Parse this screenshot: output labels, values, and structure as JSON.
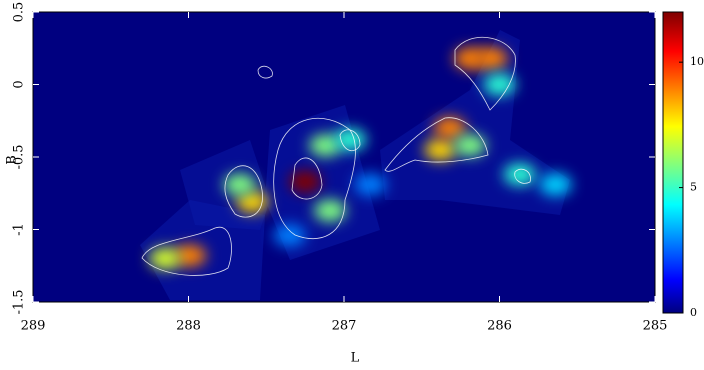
{
  "chart_data": {
    "type": "image",
    "xlabel": "L",
    "ylabel": "B",
    "xlim": [
      289,
      285
    ],
    "xticks": [
      289,
      288,
      287,
      286,
      285
    ],
    "ylim": [
      -1.5,
      0.5
    ],
    "yticks": [
      -1.5,
      -1,
      -0.5,
      0,
      0.5
    ],
    "x": [
      287.99,
      288.15,
      287.59,
      287.67,
      287.25,
      287.09,
      287.12,
      286.96,
      286.38,
      286.32,
      286.19,
      286.19,
      286.05,
      286.0,
      285.87,
      285.64,
      286.83,
      287.35
    ],
    "y": [
      -1.18,
      -1.2,
      -0.81,
      -0.69,
      -0.67,
      -0.87,
      -0.42,
      -0.38,
      -0.45,
      -0.3,
      -0.42,
      0.18,
      0.18,
      0.0,
      -0.62,
      -0.69,
      -0.69,
      -1.04
    ],
    "values": [
      9,
      7,
      8,
      6,
      12,
      6,
      6,
      5,
      8,
      9,
      6,
      9,
      9,
      5,
      5,
      4,
      3,
      3
    ],
    "colorbar": {
      "lim": [
        0,
        12
      ],
      "ticks": [
        0,
        5,
        10
      ]
    }
  }
}
